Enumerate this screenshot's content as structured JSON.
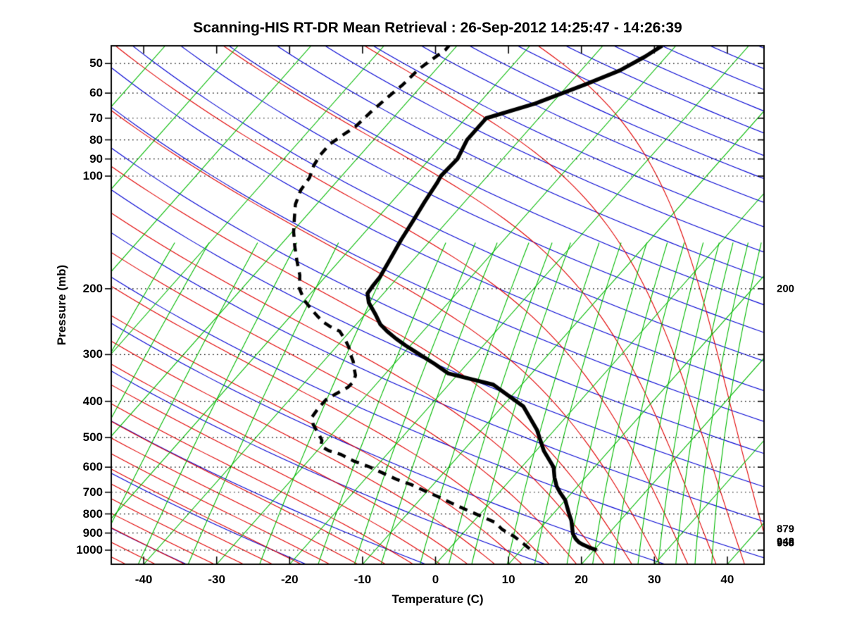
{
  "title": "Scanning-HIS RT-DR Mean Retrieval : 26-Sep-2012 14:25:47 - 14:26:39",
  "chart_data": {
    "type": "line",
    "subtype": "skew-t-log-p-sounding",
    "title": "Scanning-HIS RT-DR Mean Retrieval : 26-Sep-2012 14:25:47 - 14:26:39",
    "xlabel": "Temperature (C)",
    "ylabel": "Pressure (mb)",
    "x_axis": {
      "ticks": [
        -40,
        -30,
        -20,
        -10,
        0,
        10,
        20,
        30,
        40
      ],
      "tick_labels": [
        "-40",
        "-30",
        "-20",
        "-10",
        "0",
        "10",
        "20",
        "30",
        "40"
      ],
      "range_at_surface": [
        -44.5,
        45.0
      ]
    },
    "y_axis": {
      "scale": "log",
      "ticks": [
        50,
        60,
        70,
        80,
        90,
        100,
        200,
        300,
        400,
        500,
        600,
        700,
        800,
        900,
        1000
      ],
      "tick_labels": [
        "50",
        "60",
        "70",
        "80",
        "90",
        "100",
        "200",
        "300",
        "400",
        "500",
        "600",
        "700",
        "800",
        "900",
        "1000"
      ],
      "range": [
        44.8,
        1091
      ],
      "gridlines": "dotted"
    },
    "right_axis_labels": [
      {
        "text": "200",
        "pressure": 200
      },
      {
        "text": "879",
        "pressure": 879
      },
      {
        "text": "948",
        "pressure": 948
      },
      {
        "text": "958",
        "pressure": 958
      }
    ],
    "background": {
      "isotherms": {
        "color": "#00b900",
        "start_c": -100,
        "end_c": 45,
        "step_c": 10
      },
      "mixing_ratio_lines": {
        "color": "#00b900",
        "values_g_kg": [
          0.01,
          0.02,
          0.05,
          0.1,
          0.2,
          0.5,
          1,
          1.5,
          2,
          3,
          4,
          5,
          7,
          9,
          12,
          15,
          18,
          22,
          26,
          30,
          35,
          40
        ],
        "top_pressure_mb": 150
      },
      "dry_adiabats": {
        "color": "#0000d2",
        "theta_start_c": -56,
        "theta_end_c": 352,
        "step_c": 16
      },
      "moist_adiabats": {
        "color": "#e10000",
        "thetaw_start_c": -80,
        "thetaw_end_c": 44,
        "step_c": 4
      },
      "isobar_grid_color": "#000000"
    },
    "series": [
      {
        "name": "temperature",
        "style": "solid",
        "color": "#000000",
        "points_p_t": [
          [
            1000,
            20.4
          ],
          [
            983,
            19.0
          ],
          [
            966,
            17.8
          ],
          [
            953,
            17.0
          ],
          [
            932,
            16.1
          ],
          [
            903,
            15.1
          ],
          [
            871,
            14.3
          ],
          [
            833,
            13.3
          ],
          [
            800,
            12.2
          ],
          [
            767,
            11.1
          ],
          [
            735,
            10.0
          ],
          [
            700,
            8.3
          ],
          [
            674,
            7.1
          ],
          [
            640,
            5.8
          ],
          [
            600,
            4.4
          ],
          [
            543,
            1.1
          ],
          [
            477,
            -2.4
          ],
          [
            413,
            -7.1
          ],
          [
            361,
            -13.9
          ],
          [
            337,
            -21.4
          ],
          [
            318,
            -24.4
          ],
          [
            300,
            -27.6
          ],
          [
            284,
            -30.6
          ],
          [
            272,
            -32.8
          ],
          [
            260,
            -34.9
          ],
          [
            249,
            -36.7
          ],
          [
            234,
            -38.6
          ],
          [
            218,
            -40.9
          ],
          [
            206,
            -42.2
          ],
          [
            196,
            -42.4
          ],
          [
            186,
            -42.5
          ],
          [
            168,
            -43.2
          ],
          [
            148,
            -44.1
          ],
          [
            131,
            -44.8
          ],
          [
            117,
            -45.5
          ],
          [
            104,
            -46.1
          ],
          [
            100,
            -46.4
          ],
          [
            90,
            -46.2
          ],
          [
            80,
            -47.2
          ],
          [
            70,
            -47.2
          ],
          [
            64,
            -42.3
          ],
          [
            57,
            -37.8
          ],
          [
            52.2,
            -34.7
          ],
          [
            47.9,
            -32.9
          ],
          [
            44.8,
            -31.9
          ]
        ]
      },
      {
        "name": "dew_point",
        "style": "dashed",
        "color": "#000000",
        "points_p_t": [
          [
            991,
            11.0
          ],
          [
            960,
            9.5
          ],
          [
            919,
            7.4
          ],
          [
            880,
            4.9
          ],
          [
            843,
            3.1
          ],
          [
            782,
            -2.2
          ],
          [
            751,
            -5.0
          ],
          [
            720,
            -7.8
          ],
          [
            694,
            -10.4
          ],
          [
            667,
            -13.1
          ],
          [
            648,
            -15.5
          ],
          [
            623,
            -18.2
          ],
          [
            597,
            -21.1
          ],
          [
            579,
            -23.6
          ],
          [
            554,
            -26.4
          ],
          [
            543,
            -28.3
          ],
          [
            527,
            -30.1
          ],
          [
            509,
            -30.6
          ],
          [
            491,
            -31.7
          ],
          [
            462,
            -33.7
          ],
          [
            441,
            -34.8
          ],
          [
            419,
            -35.0
          ],
          [
            396,
            -35.0
          ],
          [
            383,
            -34.4
          ],
          [
            367,
            -33.5
          ],
          [
            355,
            -33.4
          ],
          [
            341,
            -33.9
          ],
          [
            327,
            -34.9
          ],
          [
            313,
            -35.9
          ],
          [
            300,
            -37.1
          ],
          [
            287,
            -38.2
          ],
          [
            275,
            -39.5
          ],
          [
            260,
            -41.4
          ],
          [
            252,
            -43.4
          ],
          [
            246,
            -44.7
          ],
          [
            238,
            -46.1
          ],
          [
            228,
            -47.8
          ],
          [
            215,
            -50.0
          ],
          [
            200,
            -52.1
          ],
          [
            184,
            -53.7
          ],
          [
            168,
            -55.9
          ],
          [
            154,
            -57.9
          ],
          [
            141,
            -59.8
          ],
          [
            130,
            -61.3
          ],
          [
            119,
            -62.9
          ],
          [
            109,
            -63.9
          ],
          [
            101,
            -64.2
          ],
          [
            93.7,
            -65.1
          ],
          [
            87.8,
            -65.5
          ],
          [
            82.1,
            -65.5
          ],
          [
            77,
            -64.7
          ],
          [
            73.8,
            -64.1
          ],
          [
            67.7,
            -63.8
          ],
          [
            62,
            -63.3
          ],
          [
            56.9,
            -62.7
          ],
          [
            51.7,
            -62.4
          ],
          [
            48.5,
            -61.7
          ],
          [
            46,
            -61.1
          ],
          [
            44.8,
            -61.1
          ]
        ]
      }
    ]
  }
}
